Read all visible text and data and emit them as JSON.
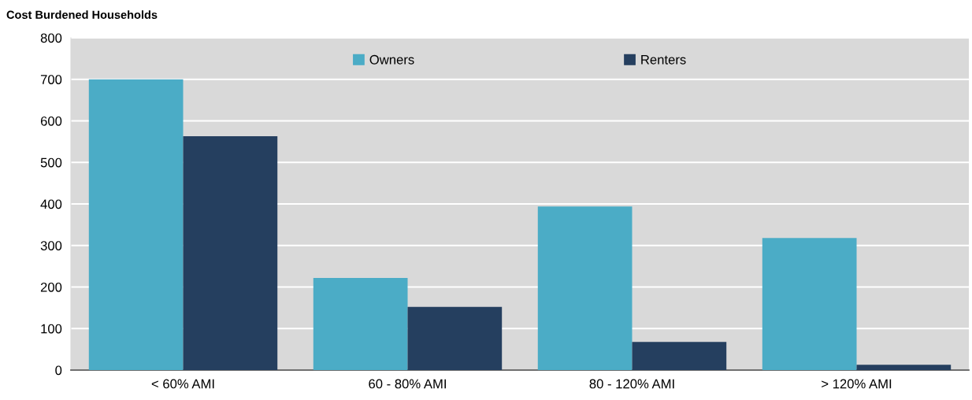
{
  "chart_data": {
    "type": "bar",
    "title": "Cost Burdened Households",
    "categories": [
      "< 60% AMI",
      "60 - 80% AMI",
      "80 - 120% AMI",
      "> 120% AMI"
    ],
    "series": [
      {
        "name": "Owners",
        "color": "#4bacc6",
        "values": [
          700,
          222,
          394,
          318
        ]
      },
      {
        "name": "Renters",
        "color": "#253f5f",
        "values": [
          563,
          152,
          68,
          13
        ]
      }
    ],
    "ylim": [
      0,
      800
    ],
    "yticks": [
      0,
      100,
      200,
      300,
      400,
      500,
      600,
      700,
      800
    ],
    "grid": "y",
    "legend": "top"
  }
}
